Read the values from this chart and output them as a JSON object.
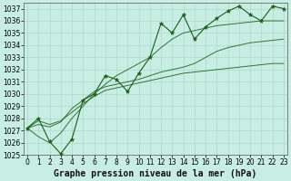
{
  "background_color": "#c8eee4",
  "plot_bg_color": "#c8eee4",
  "grid_color": "#b0d8cc",
  "line_color": "#1a5c1a",
  "ylim": [
    1025,
    1037.5
  ],
  "ytick_min": 1025,
  "ytick_max": 1037,
  "ytick_step": 1,
  "xlim": [
    -0.3,
    23.3
  ],
  "xticks": [
    0,
    1,
    2,
    3,
    4,
    5,
    6,
    7,
    8,
    9,
    10,
    11,
    12,
    13,
    14,
    15,
    16,
    17,
    18,
    19,
    20,
    21,
    22,
    23
  ],
  "xlabel": "Graphe pression niveau de la mer (hPa)",
  "x": [
    0,
    1,
    2,
    3,
    4,
    5,
    6,
    7,
    8,
    9,
    10,
    11,
    12,
    13,
    14,
    15,
    16,
    17,
    18,
    19,
    20,
    21,
    22,
    23
  ],
  "y_main": [
    1027.2,
    1028.0,
    1026.1,
    1025.1,
    1026.3,
    1029.5,
    1030.0,
    1031.5,
    1031.2,
    1030.2,
    1031.7,
    1033.0,
    1035.8,
    1035.0,
    1036.5,
    1034.5,
    1035.5,
    1036.2,
    1036.8,
    1037.2,
    1036.5,
    1036.0,
    1037.2,
    1037.0
  ],
  "y_line1": [
    1027.2,
    1027.8,
    1027.5,
    1027.8,
    1028.5,
    1029.2,
    1029.8,
    1030.3,
    1030.5,
    1030.7,
    1030.9,
    1031.1,
    1031.3,
    1031.5,
    1031.7,
    1031.8,
    1031.9,
    1032.0,
    1032.1,
    1032.2,
    1032.3,
    1032.4,
    1032.5,
    1032.5
  ],
  "y_line2": [
    1027.2,
    1027.5,
    1027.3,
    1027.7,
    1028.8,
    1029.5,
    1030.2,
    1030.6,
    1030.8,
    1031.0,
    1031.2,
    1031.5,
    1031.8,
    1032.0,
    1032.2,
    1032.5,
    1033.0,
    1033.5,
    1033.8,
    1034.0,
    1034.2,
    1034.3,
    1034.4,
    1034.5
  ],
  "y_line3": [
    1027.2,
    1026.5,
    1026.0,
    1026.8,
    1028.0,
    1029.0,
    1030.0,
    1030.8,
    1031.5,
    1032.0,
    1032.5,
    1033.0,
    1033.8,
    1034.5,
    1035.0,
    1035.2,
    1035.4,
    1035.6,
    1035.7,
    1035.8,
    1035.9,
    1036.0,
    1036.0,
    1036.0
  ],
  "title_fontsize": 7,
  "tick_fontsize": 5.5
}
